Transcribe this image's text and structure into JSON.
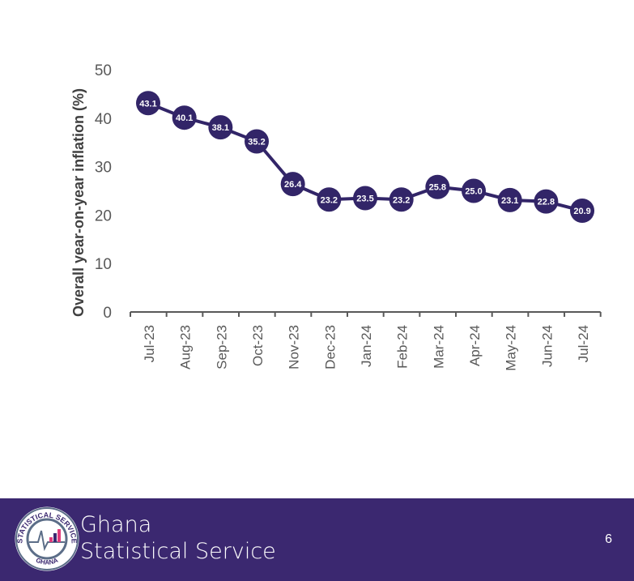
{
  "chart_data": {
    "type": "line",
    "title": "",
    "xlabel": "",
    "ylabel": "Overall year-on-year inflation (%)",
    "ylim": [
      0,
      50
    ],
    "yticks": [
      0,
      10,
      20,
      30,
      40,
      50
    ],
    "categories": [
      "Jul-23",
      "Aug-23",
      "Sep-23",
      "Oct-23",
      "Nov-23",
      "Dec-23",
      "Jan-24",
      "Feb-24",
      "Mar-24",
      "Apr-24",
      "May-24",
      "Jun-24",
      "Jul-24"
    ],
    "series": [
      {
        "name": "Overall inflation",
        "values": [
          43.1,
          40.1,
          38.1,
          35.2,
          26.4,
          23.2,
          23.5,
          23.2,
          25.8,
          25.0,
          23.1,
          22.8,
          20.9
        ],
        "labels": [
          "43.1",
          "40.1",
          "38.1",
          "35.2",
          "26.4",
          "23.2",
          "23.5",
          "23.2",
          "25.8",
          "25.0",
          "23.1",
          "22.8",
          "20.9"
        ],
        "color": "#322568"
      }
    ],
    "grid": false,
    "legend": "none"
  },
  "footer": {
    "org_line1": "Ghana",
    "org_line2": "Statistical Service",
    "page_number": "6",
    "logo_text_top": "STATISTICAL SERVICE",
    "logo_text_bottom": "GHANA",
    "background": "#3b2870"
  }
}
